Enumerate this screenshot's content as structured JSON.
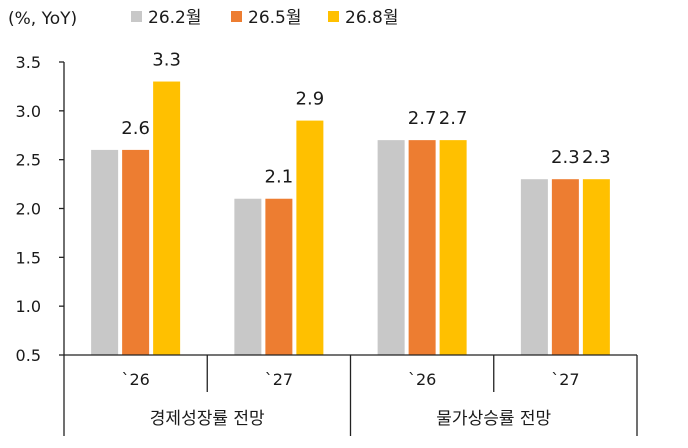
{
  "chart_data": {
    "type": "bar",
    "unit_label": "(%, YoY)",
    "ylim": [
      0.5,
      3.5
    ],
    "yticks": [
      "0.5",
      "1.0",
      "1.5",
      "2.0",
      "2.5",
      "3.0",
      "3.5"
    ],
    "grid": false,
    "legend_position": "top",
    "series": [
      {
        "name": "26.2월",
        "color": "#c8c8c8",
        "values": [
          2.6,
          2.1,
          2.7,
          2.3
        ]
      },
      {
        "name": "26.5월",
        "color": "#ed7d31",
        "values": [
          2.6,
          2.1,
          2.7,
          2.3
        ]
      },
      {
        "name": "26.8월",
        "color": "#ffc000",
        "values": [
          3.3,
          2.9,
          2.7,
          2.3
        ]
      }
    ],
    "categories": [
      "`26",
      "`27",
      "`26",
      "`27"
    ],
    "groups": [
      {
        "label": "경제성장률 전망",
        "categories": [
          0,
          1
        ]
      },
      {
        "label": "물가상승률 전망",
        "categories": [
          2,
          3
        ]
      }
    ],
    "data_labels": [
      {
        "category": 0,
        "series": 1,
        "text": "2.6"
      },
      {
        "category": 0,
        "series": 2,
        "text": "3.3"
      },
      {
        "category": 1,
        "series": 1,
        "text": "2.1"
      },
      {
        "category": 1,
        "series": 2,
        "text": "2.9"
      },
      {
        "category": 2,
        "series": 1,
        "text": "2.7"
      },
      {
        "category": 2,
        "series": 2,
        "text": "2.7"
      },
      {
        "category": 3,
        "series": 1,
        "text": "2.3"
      },
      {
        "category": 3,
        "series": 2,
        "text": "2.3"
      }
    ]
  }
}
